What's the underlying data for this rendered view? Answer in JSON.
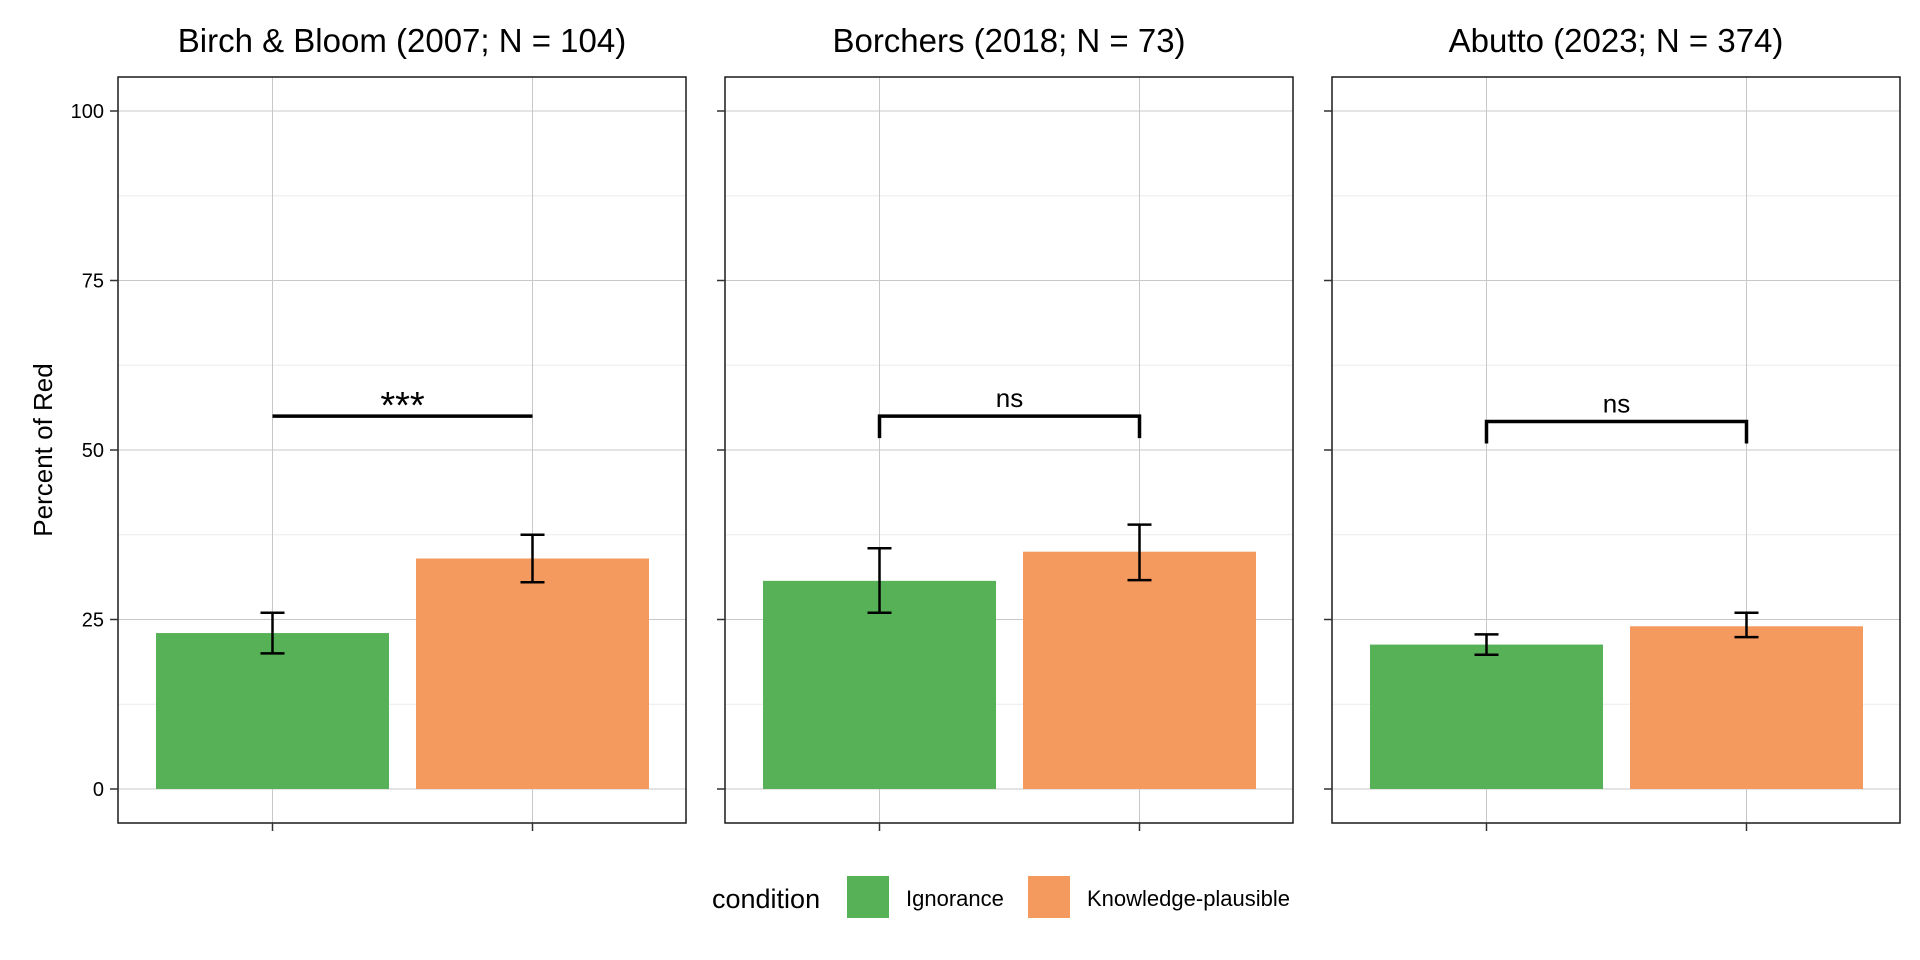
{
  "chart_data": {
    "type": "bar",
    "ylabel": "Percent of Red",
    "xlabel": "",
    "ylim": [
      0,
      100
    ],
    "y_ticks": [
      "0",
      "25",
      "50",
      "75",
      "100"
    ],
    "grid": true,
    "legend": {
      "title": "condition",
      "placement": "bottom",
      "entries": [
        {
          "label": "Ignorance",
          "color": "#57B257"
        },
        {
          "label": "Knowledge-plausible",
          "color": "#F59A5E"
        }
      ]
    },
    "panels": [
      {
        "title": "Birch & Bloom (2007; N = 104)",
        "bars": [
          {
            "condition": "Ignorance",
            "value": 23,
            "error_low": 20,
            "error_high": 26
          },
          {
            "condition": "Knowledge-plausible",
            "value": 34,
            "error_low": 30.5,
            "error_high": 37.5
          }
        ],
        "significance": {
          "label": "***",
          "y": 55,
          "bracket_ends": false
        }
      },
      {
        "title": "Borchers (2018; N = 73)",
        "bars": [
          {
            "condition": "Ignorance",
            "value": 30.7,
            "error_low": 26,
            "error_high": 35.5
          },
          {
            "condition": "Knowledge-plausible",
            "value": 35,
            "error_low": 30.8,
            "error_high": 39
          }
        ],
        "significance": {
          "label": "ns",
          "y": 55,
          "bracket_ends": true
        }
      },
      {
        "title": "Abutto (2023; N = 374)",
        "bars": [
          {
            "condition": "Ignorance",
            "value": 21.3,
            "error_low": 19.8,
            "error_high": 22.8
          },
          {
            "condition": "Knowledge-plausible",
            "value": 24,
            "error_low": 22.4,
            "error_high": 26
          }
        ],
        "significance": {
          "label": "ns",
          "y": 54.2,
          "bracket_ends": true
        }
      }
    ]
  }
}
